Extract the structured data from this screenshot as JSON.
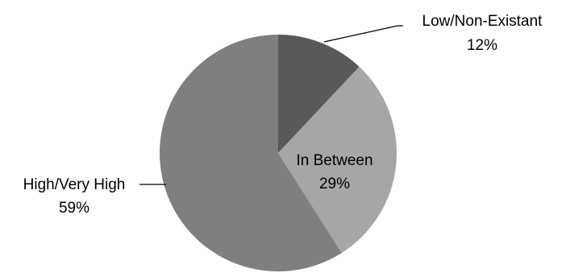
{
  "chart_data": {
    "type": "pie",
    "title": "",
    "slices": [
      {
        "label": "Low/Non-Existant",
        "value": 12,
        "percent_label": "12%",
        "color": "#595959"
      },
      {
        "label": "In Between",
        "value": 29,
        "percent_label": "29%",
        "color": "#a6a6a6"
      },
      {
        "label": "High/Very High",
        "value": 59,
        "percent_label": "59%",
        "color": "#7f7f7f"
      }
    ],
    "start_angle_deg": 0,
    "direction": "clockwise",
    "legend": "none"
  }
}
